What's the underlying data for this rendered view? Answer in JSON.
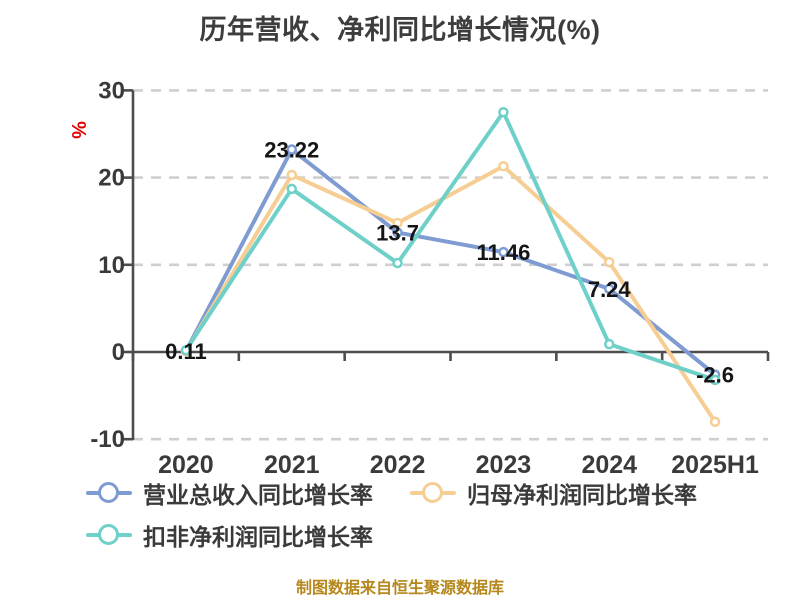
{
  "title": "历年营收、净利同比增长情况(%)",
  "footer": "制图数据来自恒生聚源数据库",
  "theme": {
    "background": "#ffffff",
    "axis": "#4d4d4d",
    "grid": "#cfcfcf",
    "tick_label": "#3a3a3a",
    "data_label": "#151515",
    "y_name_color": "#e60000",
    "title_color": "#3d3d3d",
    "footer_color": "#b5871c"
  },
  "chart_data": {
    "type": "line",
    "title": "历年营收、净利同比增长情况(%)",
    "y_name": "%",
    "ylim": [
      -10,
      30
    ],
    "yticks": [
      30,
      20,
      10,
      0,
      -10
    ],
    "grid": "horizontal dashed gridlines at 30/20/10/-10, solid dark axis line at 0",
    "legend_position": "bottom-left, two rows",
    "categories": [
      "2020",
      "2021",
      "2022",
      "2023",
      "2024",
      "2025H1"
    ],
    "series": [
      {
        "name": "营业总收入同比增长率",
        "color": "#7E9BD2",
        "values": [
          0.11,
          23.22,
          13.7,
          11.46,
          7.24,
          -2.6
        ],
        "point_labels": [
          "0.11",
          "23.22",
          "13.7",
          "11.46",
          "7.24",
          "-2.6"
        ]
      },
      {
        "name": "归母净利润同比增长率",
        "color": "#F6CE93",
        "values": [
          0.1,
          20.3,
          14.8,
          21.3,
          10.3,
          -8.0
        ]
      },
      {
        "name": "扣非净利润同比增长率",
        "color": "#6FD0CA",
        "values": [
          0.2,
          18.7,
          10.2,
          27.5,
          0.9,
          -3.2
        ]
      }
    ]
  }
}
